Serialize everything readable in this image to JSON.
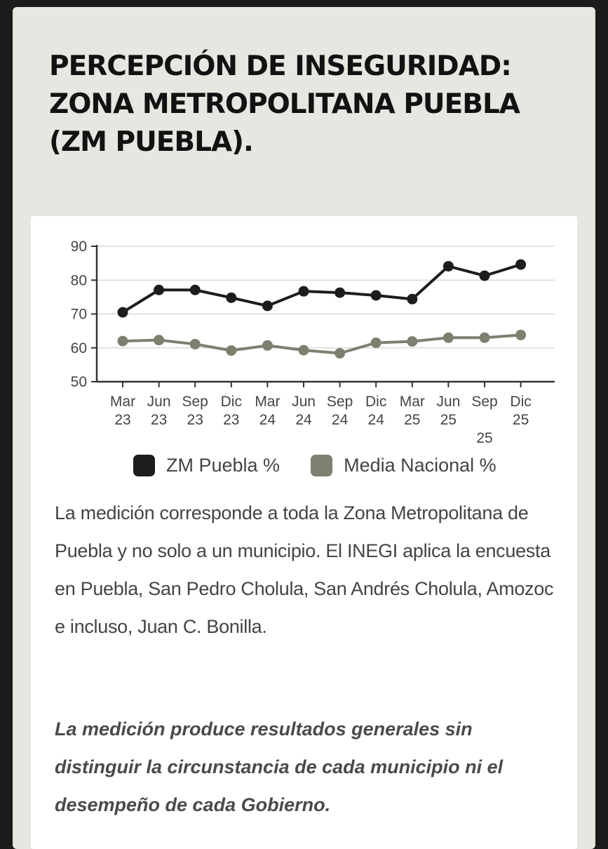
{
  "title": "PERCEPCIÓN DE INSEGURIDAD: ZONA METROPOLITANA PUEBLA (ZM PUEBLA).",
  "chart_data": {
    "type": "line",
    "x": [
      "Mar 23",
      "Jun 23",
      "Sep 23",
      "Dic 23",
      "Mar 24",
      "Jun 24",
      "Sep 24",
      "Dic 24",
      "Mar 25",
      "Jun 25",
      "Sep 25",
      "Dic 25"
    ],
    "x_label_lines": [
      [
        "Mar",
        "23"
      ],
      [
        "Jun",
        "23"
      ],
      [
        "Sep",
        "23"
      ],
      [
        "Dic",
        "23"
      ],
      [
        "Mar",
        "24"
      ],
      [
        "Jun",
        "24"
      ],
      [
        "Sep",
        "24"
      ],
      [
        "Dic",
        "24"
      ],
      [
        "Mar",
        "25"
      ],
      [
        "Jun",
        "25"
      ],
      [
        "Sep",
        "",
        "25"
      ],
      [
        "Dic",
        "25"
      ]
    ],
    "ylim": [
      50,
      90
    ],
    "yticks": [
      50,
      60,
      70,
      80,
      90
    ],
    "grid": true,
    "legend_position": "bottom",
    "series": [
      {
        "name": "ZM Puebla %",
        "color": "#1d1d1b",
        "values": [
          70.5,
          77.1,
          77.1,
          74.8,
          72.4,
          76.7,
          76.3,
          75.5,
          74.4,
          84.1,
          81.3,
          84.6
        ]
      },
      {
        "name": "Media Nacional %",
        "color": "#7e806f",
        "values": [
          62.0,
          62.3,
          61.1,
          59.2,
          60.7,
          59.3,
          58.4,
          61.5,
          61.9,
          63.0,
          63.0,
          63.8
        ]
      }
    ]
  },
  "description": "La medición corresponde a toda la Zona Metropolitana de Puebla y no solo a un municipio. El INEGI aplica la encuesta en Puebla, San Pedro Cholula, San Andrés Cholula, Amozoc e incluso, Juan C. Bonilla.",
  "note": "La medición produce resultados generales sin distinguir la circunstancia de cada municipio ni el desempeño de cada Gobierno."
}
